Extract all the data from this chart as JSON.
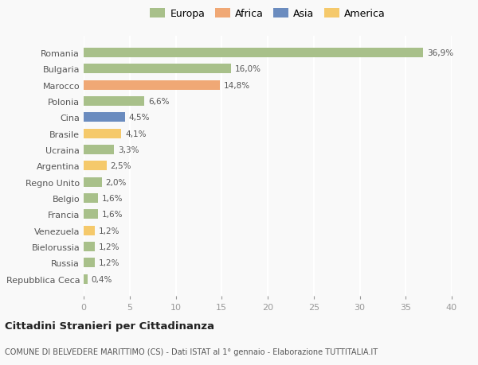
{
  "countries": [
    "Romania",
    "Bulgaria",
    "Marocco",
    "Polonia",
    "Cina",
    "Brasile",
    "Ucraina",
    "Argentina",
    "Regno Unito",
    "Belgio",
    "Francia",
    "Venezuela",
    "Bielorussia",
    "Russia",
    "Repubblica Ceca"
  ],
  "values": [
    36.9,
    16.0,
    14.8,
    6.6,
    4.5,
    4.1,
    3.3,
    2.5,
    2.0,
    1.6,
    1.6,
    1.2,
    1.2,
    1.2,
    0.4
  ],
  "labels": [
    "36,9%",
    "16,0%",
    "14,8%",
    "6,6%",
    "4,5%",
    "4,1%",
    "3,3%",
    "2,5%",
    "2,0%",
    "1,6%",
    "1,6%",
    "1,2%",
    "1,2%",
    "1,2%",
    "0,4%"
  ],
  "colors": [
    "#a8c08a",
    "#a8c08a",
    "#f0a875",
    "#a8c08a",
    "#6b8cbf",
    "#f5c96b",
    "#a8c08a",
    "#f5c96b",
    "#a8c08a",
    "#a8c08a",
    "#a8c08a",
    "#f5c96b",
    "#a8c08a",
    "#a8c08a",
    "#a8c08a"
  ],
  "legend": {
    "Europa": "#a8c08a",
    "Africa": "#f0a875",
    "Asia": "#6b8cbf",
    "America": "#f5c96b"
  },
  "xlim": [
    0,
    40
  ],
  "xticks": [
    0,
    5,
    10,
    15,
    20,
    25,
    30,
    35,
    40
  ],
  "title": "Cittadini Stranieri per Cittadinanza",
  "subtitle": "COMUNE DI BELVEDERE MARITTIMO (CS) - Dati ISTAT al 1° gennaio - Elaborazione TUTTITALIA.IT",
  "background_color": "#f9f9f9",
  "grid_color": "#ffffff",
  "bar_height": 0.6
}
